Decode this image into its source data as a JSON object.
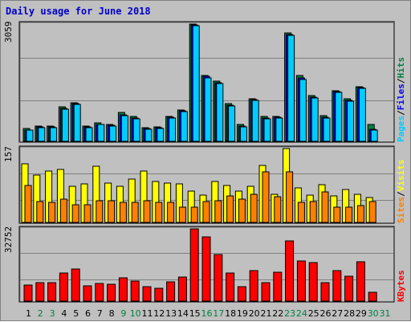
{
  "title": "Daily usage for June 2018",
  "colors": {
    "background": "#c0c0c0",
    "title": "#0000cc",
    "hits": "#008040",
    "files": "#0000ff",
    "pages": "#00ccff",
    "visits": "#ffff00",
    "sites": "#ff8000",
    "kbytes": "#ff0000",
    "weekend_day": "#008040"
  },
  "legend": {
    "hits": "Hits",
    "files": "Files",
    "pages": "Pages",
    "separator": "/",
    "visits": "Visits",
    "sites": "Sites",
    "kbytes": "KBytes"
  },
  "chart_data": [
    {
      "type": "bar",
      "panel": "hits-files-pages",
      "ymax_label": "3059",
      "ylim": [
        0,
        3059
      ],
      "grid": true,
      "x": [
        1,
        2,
        3,
        4,
        5,
        6,
        7,
        8,
        9,
        10,
        11,
        12,
        13,
        14,
        15,
        16,
        17,
        18,
        19,
        20,
        21,
        22,
        23,
        24,
        25,
        26,
        27,
        28,
        29,
        30
      ],
      "series": [
        {
          "name": "Hits",
          "values": [
            340,
            390,
            390,
            900,
            1010,
            400,
            480,
            440,
            750,
            650,
            360,
            380,
            650,
            820,
            3059,
            1720,
            1570,
            990,
            430,
            1110,
            650,
            650,
            2830,
            1710,
            1200,
            680,
            1330,
            1110,
            1430,
            430
          ]
        },
        {
          "name": "Files",
          "values": [
            300,
            370,
            370,
            860,
            990,
            370,
            450,
            410,
            700,
            610,
            340,
            360,
            620,
            800,
            3030,
            1690,
            1520,
            950,
            400,
            1080,
            610,
            620,
            2780,
            1650,
            1160,
            630,
            1300,
            1070,
            1400,
            320
          ]
        },
        {
          "name": "Pages",
          "values": [
            285,
            355,
            355,
            840,
            970,
            350,
            430,
            390,
            680,
            590,
            320,
            340,
            600,
            780,
            3010,
            1660,
            1500,
            930,
            385,
            1060,
            590,
            600,
            2760,
            1620,
            1140,
            610,
            1280,
            1050,
            1380,
            300
          ]
        }
      ]
    },
    {
      "type": "bar",
      "panel": "visits-sites",
      "ymax_label": "157",
      "ylim": [
        0,
        157
      ],
      "grid": true,
      "x": [
        1,
        2,
        3,
        4,
        5,
        6,
        7,
        8,
        9,
        10,
        11,
        12,
        13,
        14,
        15,
        16,
        17,
        18,
        19,
        20,
        21,
        22,
        23,
        24,
        25,
        26,
        27,
        28,
        29,
        30
      ],
      "series": [
        {
          "name": "Visits",
          "values": [
            125,
            100,
            110,
            112,
            77,
            82,
            119,
            83,
            76,
            92,
            109,
            87,
            84,
            82,
            67,
            58,
            87,
            78,
            67,
            77,
            121,
            60,
            157,
            73,
            58,
            81,
            56,
            70,
            60,
            53
          ]
        },
        {
          "name": "Sites",
          "values": [
            79,
            45,
            43,
            49,
            38,
            38,
            46,
            46,
            42,
            43,
            46,
            42,
            42,
            33,
            33,
            44,
            46,
            57,
            49,
            59,
            108,
            54,
            107,
            43,
            45,
            64,
            32,
            32,
            35,
            45
          ]
        }
      ]
    },
    {
      "type": "bar",
      "panel": "kbytes",
      "ymax_label": "32752",
      "ylim": [
        0,
        32752
      ],
      "grid": true,
      "x": [
        1,
        2,
        3,
        4,
        5,
        6,
        7,
        8,
        9,
        10,
        11,
        12,
        13,
        14,
        15,
        16,
        17,
        18,
        19,
        20,
        21,
        22,
        23,
        24,
        25,
        26,
        27,
        28,
        29,
        30
      ],
      "series": [
        {
          "name": "KBytes",
          "values": [
            7200,
            8200,
            8200,
            12800,
            14400,
            6800,
            8000,
            7600,
            10700,
            9200,
            6400,
            5800,
            8600,
            11000,
            32752,
            29000,
            21200,
            12900,
            6700,
            13700,
            8400,
            13000,
            27300,
            18200,
            17300,
            8500,
            13700,
            11200,
            17700,
            3900
          ]
        }
      ]
    }
  ],
  "x_axis": {
    "days": [
      "1",
      "2",
      "3",
      "4",
      "5",
      "6",
      "7",
      "8",
      "9",
      "10",
      "11",
      "12",
      "13",
      "14",
      "15",
      "16",
      "17",
      "18",
      "19",
      "20",
      "21",
      "22",
      "23",
      "24",
      "25",
      "26",
      "27",
      "28",
      "29",
      "30",
      "31"
    ],
    "weekend_days": [
      "2",
      "3",
      "9",
      "10",
      "16",
      "17",
      "23",
      "24",
      "30",
      "31"
    ]
  }
}
